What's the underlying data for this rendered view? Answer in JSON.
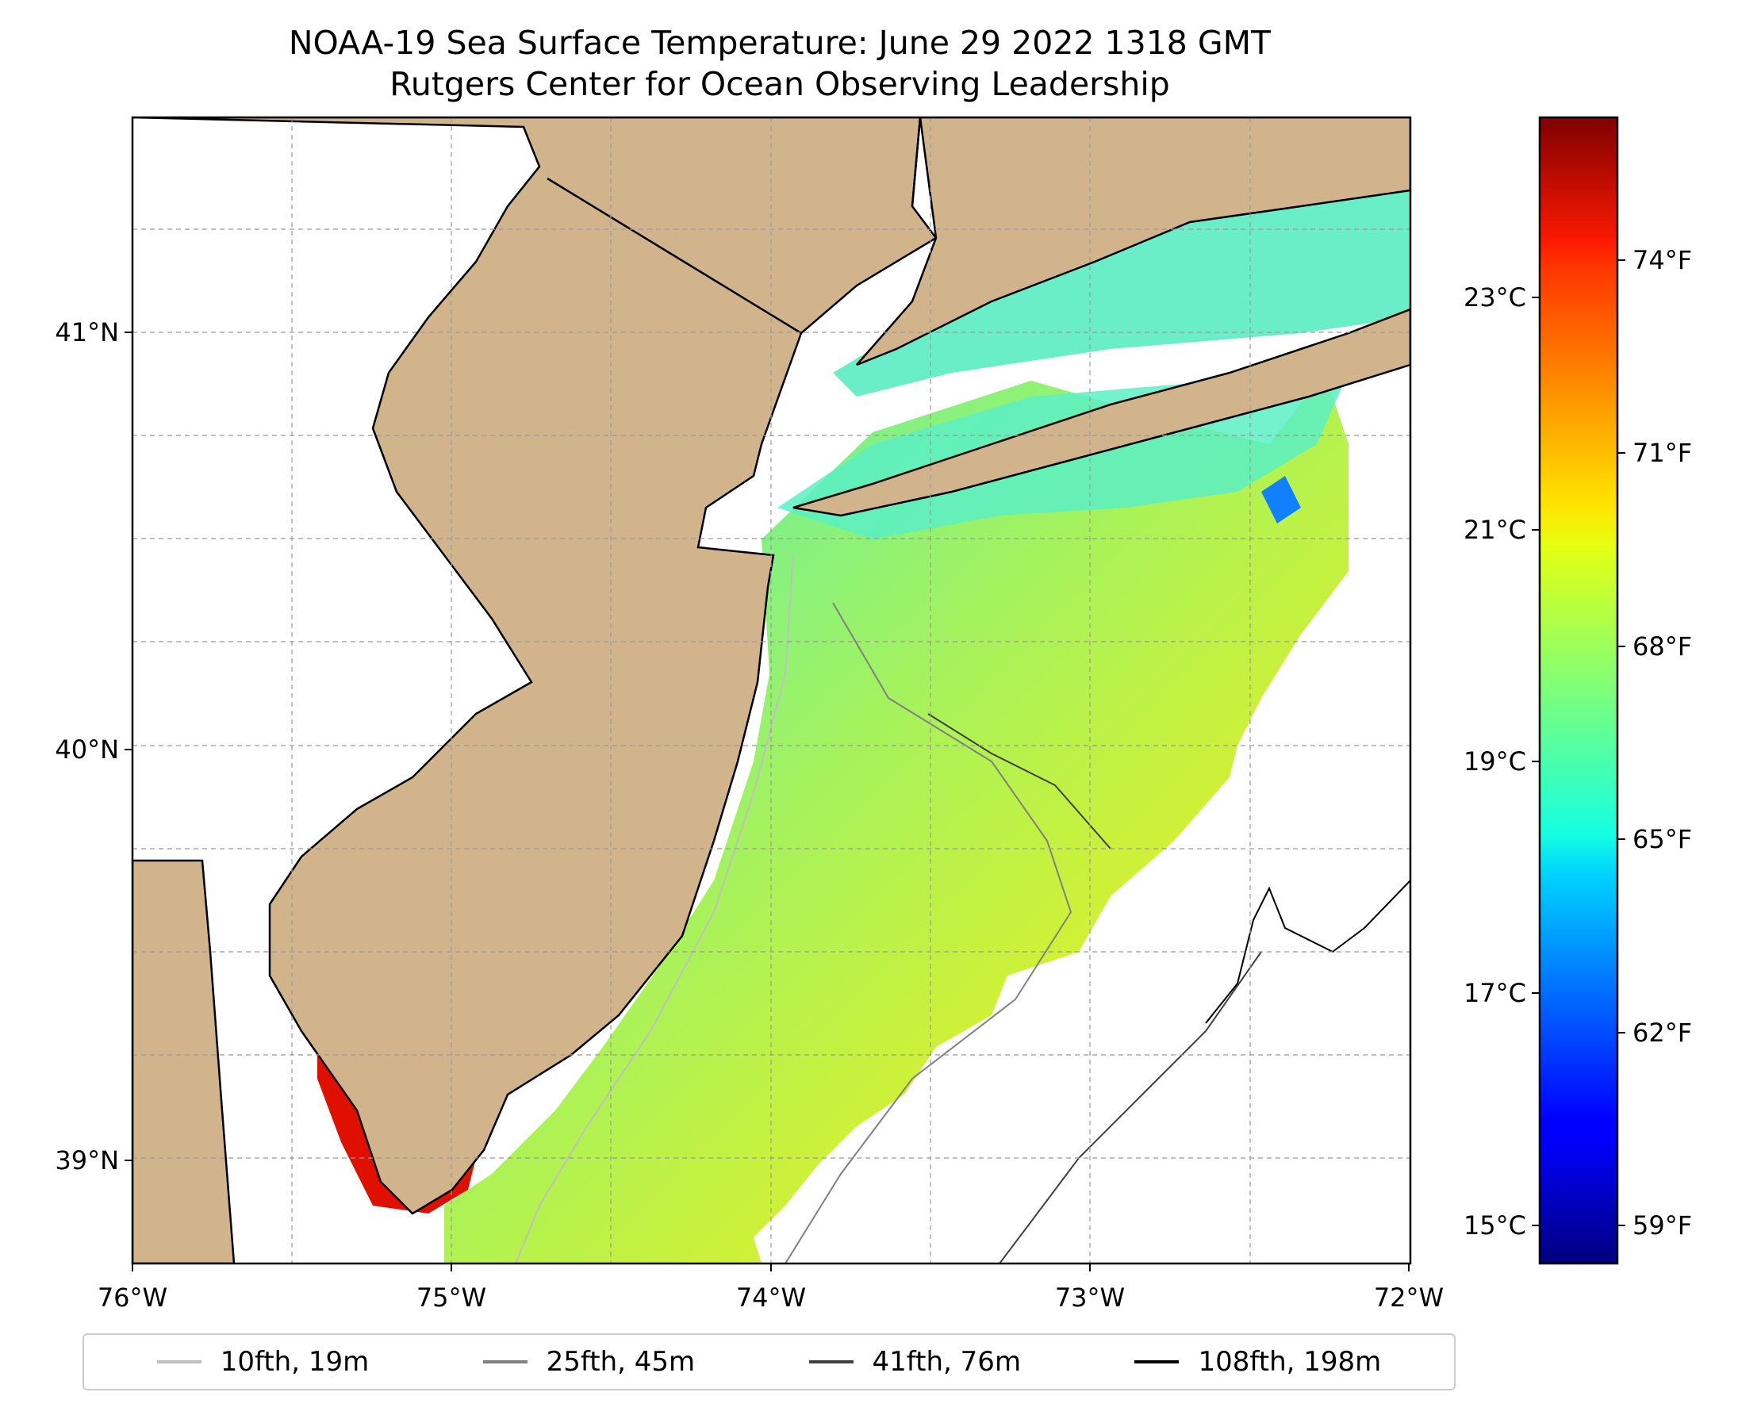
{
  "title": {
    "line1": "NOAA-19 Sea Surface Temperature: June 29 2022 1318 GMT",
    "line2": "Rutgers Center for Ocean Observing Leadership"
  },
  "map": {
    "land_color": "#d2b48c",
    "ocean_missing_color": "#ffffff",
    "lon_range": [
      -76,
      -72
    ],
    "lat_range": [
      38.75,
      41.55
    ],
    "x_ticks": [
      "76°W",
      "75°W",
      "74°W",
      "73°W",
      "72°W"
    ],
    "y_ticks": [
      "41°N",
      "40°N",
      "39°N"
    ]
  },
  "colorbar": {
    "colormap": "jet",
    "celsius_ticks": [
      "23°C",
      "21°C",
      "19°C",
      "17°C",
      "15°C"
    ],
    "fahrenheit_ticks": [
      "74°F",
      "71°F",
      "68°F",
      "65°F",
      "62°F",
      "59°F"
    ]
  },
  "legend": {
    "items": [
      {
        "label": "10fth, 19m",
        "color": "#c0c0c0"
      },
      {
        "label": "25fth, 45m",
        "color": "#808080"
      },
      {
        "label": "41fth, 76m",
        "color": "#404040"
      },
      {
        "label": "108fth, 198m",
        "color": "#000000"
      }
    ]
  }
}
